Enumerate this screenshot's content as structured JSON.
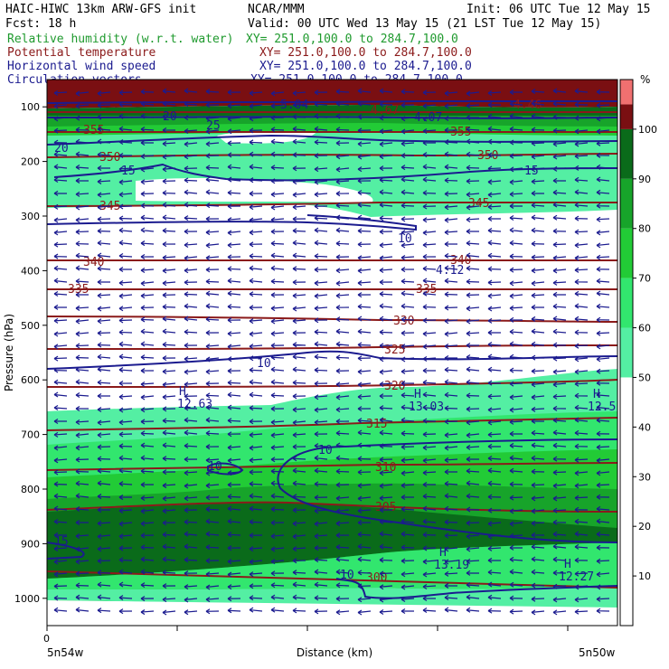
{
  "header": {
    "title_left": "HAIC-HIWC 13km ARW-GFS init",
    "org": "NCAR/MMM",
    "init": "Init: 06 UTC Tue 12 May 15",
    "fcst": "Fcst:    18 h",
    "valid": "Valid: 00 UTC Wed 13 May 15 (21 LST Tue 12 May 15)"
  },
  "fields": [
    {
      "name": "Relative humidity (w.r.t. water)",
      "xy": "XY= 251.0,100.0 to 284.7,100.0",
      "color": "#1f9a2e"
    },
    {
      "name": "Potential temperature",
      "xy": "XY= 251.0,100.0 to 284.7,100.0",
      "color": "#8b1a1a"
    },
    {
      "name": "Horizontal wind speed",
      "xy": "XY= 251.0,100.0 to 284.7,100.0",
      "color": "#1b1b8f"
    },
    {
      "name": "Circulation vectors",
      "xy": "XY= 251.0,100.0 to 284.7,100.0",
      "color": "#1b1b8f"
    }
  ],
  "chart_data": {
    "type": "heatmap",
    "ylabel": "Pressure (hPa)",
    "xlabel": "Distance (km)",
    "ylim": [
      1050,
      50
    ],
    "y_ticks": [
      100,
      200,
      300,
      400,
      500,
      600,
      700,
      800,
      900,
      1000
    ],
    "x_ticks": [
      "0"
    ],
    "x_end_labels": [
      "5n54w",
      "5n50w"
    ],
    "colorbar": {
      "unit": "%",
      "ticks": [
        10,
        20,
        30,
        40,
        50,
        60,
        70,
        80,
        90,
        100
      ],
      "bands": [
        {
          "from": 50,
          "to": 60,
          "color": "#54efa3"
        },
        {
          "from": 60,
          "to": 70,
          "color": "#32e66e"
        },
        {
          "from": 70,
          "to": 80,
          "color": "#22cb36"
        },
        {
          "from": 80,
          "to": 90,
          "color": "#17a42a"
        },
        {
          "from": 90,
          "to": 100,
          "color": "#0a6b1a"
        },
        {
          "from": 100,
          "to": 105,
          "color": "#7a0f12"
        },
        {
          "from": 105,
          "to": 110,
          "color": "#f07070"
        }
      ]
    },
    "theta_labels": [
      "300",
      "305",
      "310",
      "315",
      "320",
      "325",
      "330",
      "335",
      "340",
      "345",
      "350",
      "355"
    ],
    "wind_labels": [
      "10",
      "15",
      "20",
      "25"
    ],
    "annotations": [
      "12.63",
      "13.03",
      "12.5",
      "13.19",
      "12.27",
      "4.12",
      "4.67",
      "4.07",
      "4.46",
      "5.04"
    ]
  }
}
